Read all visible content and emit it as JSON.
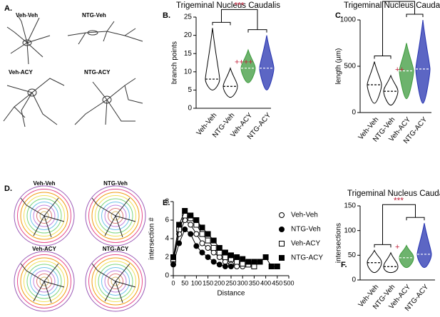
{
  "panels": {
    "A": {
      "letter": "A.",
      "labels": [
        "Veh-Veh",
        "NTG-Veh",
        "Veh-ACY",
        "NTG-ACY"
      ]
    },
    "D": {
      "letter": "D.",
      "labels": [
        "Veh-Veh",
        "NTG-Veh",
        "Veh-ACY",
        "NTG-ACY"
      ]
    }
  },
  "chart_data": [
    {
      "type": "violin",
      "letter": "B.",
      "title": "Trigeminal Nucleus Caudalis",
      "ylabel": "branch points",
      "categories": [
        "Veh-Veh",
        "NTG-Veh",
        "Veh-ACY",
        "NTG-ACY"
      ],
      "colors": [
        "#ffffff",
        "#ffffff",
        "#3c9a3c",
        "#2633b0"
      ],
      "values": [
        8,
        6,
        11,
        11
      ],
      "min": [
        5,
        3,
        7,
        5
      ],
      "max": [
        22,
        11,
        16,
        20
      ],
      "ylim": [
        0,
        25
      ],
      "yticks": [
        0,
        5,
        10,
        15,
        20,
        25
      ],
      "annotations": [
        "***",
        "++++"
      ]
    },
    {
      "type": "violin",
      "letter": "C.",
      "title": "Trigeminal Nucleus Caudalis",
      "ylabel": "length (µm)",
      "categories": [
        "Veh-Veh",
        "NTG-Veh",
        "Veh-ACY",
        "NTG-ACY"
      ],
      "colors": [
        "#ffffff",
        "#ffffff",
        "#3c9a3c",
        "#2633b0"
      ],
      "values": [
        300,
        230,
        450,
        470
      ],
      "min": [
        100,
        80,
        150,
        100
      ],
      "max": [
        550,
        400,
        750,
        1000
      ],
      "ylim": [
        0,
        1000
      ],
      "yticks": [
        0,
        500,
        1000
      ],
      "annotations": [
        "****",
        "++"
      ]
    },
    {
      "type": "line",
      "letter": "E.",
      "ylabel": "intersection #",
      "xlabel": "Distance",
      "x": [
        0,
        25,
        50,
        75,
        100,
        125,
        150,
        175,
        200,
        225,
        250,
        275,
        300,
        325,
        350,
        375,
        400,
        425,
        450
      ],
      "series": [
        {
          "name": "Veh-Veh",
          "color": "#000000",
          "marker": "circle",
          "filled": false,
          "values": [
            1.5,
            4.5,
            6.0,
            5.5,
            4.5,
            3.5,
            3.0,
            2.5,
            2.0,
            1.5,
            1.2,
            1.0,
            1.0,
            null,
            null,
            null,
            null,
            null,
            null
          ]
        },
        {
          "name": "NTG-Veh",
          "color": "#000000",
          "marker": "circle",
          "filled": true,
          "values": [
            1.2,
            3.5,
            5.0,
            4.5,
            3.2,
            2.5,
            2.0,
            1.5,
            1.2,
            1.0,
            1.0,
            null,
            null,
            null,
            null,
            null,
            null,
            null,
            null
          ]
        },
        {
          "name": "Veh-ACY",
          "color": "#000000",
          "marker": "square",
          "filled": false,
          "values": [
            1.8,
            5.0,
            6.5,
            6.2,
            5.5,
            4.5,
            3.8,
            3.0,
            2.5,
            2.0,
            1.8,
            1.5,
            1.3,
            1.2,
            1.0,
            null,
            null,
            null,
            null
          ]
        },
        {
          "name": "NTG-ACY",
          "color": "#000000",
          "marker": "square",
          "filled": true,
          "values": [
            2.0,
            5.5,
            7.0,
            6.5,
            6.0,
            5.2,
            4.5,
            3.8,
            3.0,
            2.5,
            2.2,
            2.0,
            1.8,
            1.5,
            1.5,
            1.5,
            2.0,
            1.0,
            1.0
          ]
        }
      ],
      "xlim": [
        0,
        500
      ],
      "xticks": [
        0,
        50,
        100,
        150,
        200,
        250,
        300,
        350,
        400,
        450,
        500
      ],
      "ylim": [
        0,
        8
      ],
      "yticks": [
        0,
        2,
        4,
        6,
        8
      ]
    },
    {
      "type": "violin",
      "letter": "F.",
      "title": "Trigeminal Nucleus Caudalis",
      "ylabel": "intersections",
      "categories": [
        "Veh-Veh",
        "NTG-Veh",
        "Veh-ACY",
        "NTG-ACY"
      ],
      "colors": [
        "#ffffff",
        "#ffffff",
        "#3c9a3c",
        "#2633b0"
      ],
      "values": [
        35,
        27,
        45,
        52
      ],
      "min": [
        15,
        15,
        25,
        25
      ],
      "max": [
        60,
        55,
        70,
        115
      ],
      "ylim": [
        0,
        150
      ],
      "yticks": [
        0,
        50,
        100,
        150
      ],
      "annotations": [
        "***",
        "+"
      ]
    }
  ]
}
